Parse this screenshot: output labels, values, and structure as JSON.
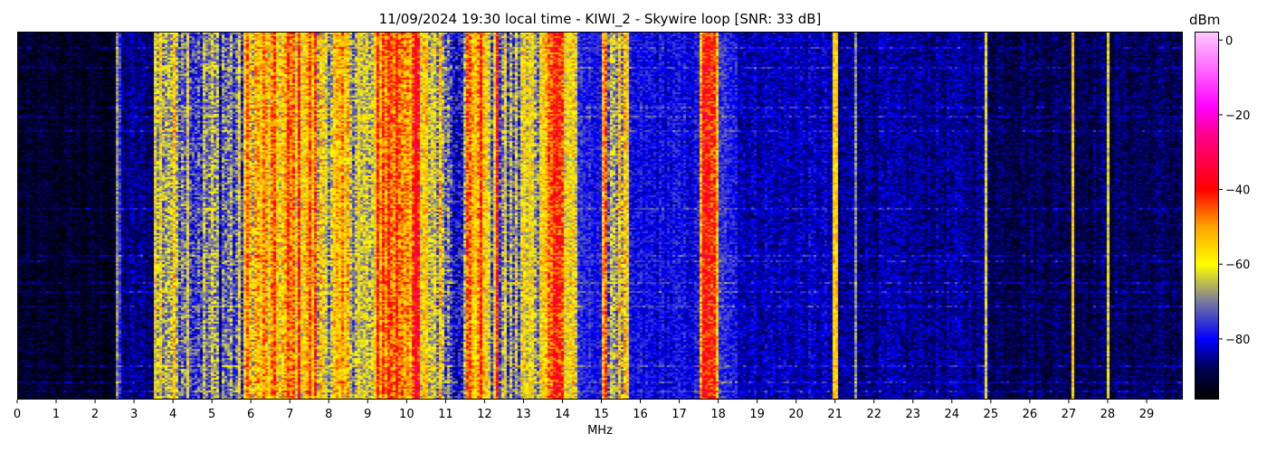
{
  "chart_data": {
    "type": "heatmap",
    "title": "11/09/2024 19:30 local time - KIWI_2 - Skywire loop [SNR: 33 dB]",
    "xlabel": "MHz",
    "ylabel": "",
    "xlim": [
      0,
      30
    ],
    "x_ticks": [
      "0",
      "1",
      "2",
      "3",
      "4",
      "5",
      "6",
      "7",
      "8",
      "9",
      "10",
      "11",
      "12",
      "13",
      "14",
      "15",
      "16",
      "17",
      "18",
      "19",
      "20",
      "21",
      "22",
      "23",
      "24",
      "25",
      "26",
      "27",
      "28",
      "29"
    ],
    "colorbar": {
      "label": "dBm",
      "range": [
        -96,
        2
      ],
      "ticks": [
        "0",
        "−20",
        "−40",
        "−60",
        "−80"
      ],
      "tick_values": [
        0,
        -20,
        -40,
        -60,
        -80
      ],
      "colormap_stops": [
        {
          "dBm": -96,
          "color": "#000000"
        },
        {
          "dBm": -88,
          "color": "#000050"
        },
        {
          "dBm": -80,
          "color": "#0000ff"
        },
        {
          "dBm": -70,
          "color": "#7878a0"
        },
        {
          "dBm": -60,
          "color": "#ffff00"
        },
        {
          "dBm": -50,
          "color": "#ffa500"
        },
        {
          "dBm": -40,
          "color": "#ff0000"
        },
        {
          "dBm": -25,
          "color": "#ff0090"
        },
        {
          "dBm": -18,
          "color": "#ff00ff"
        },
        {
          "dBm": 2,
          "color": "#ffc8ff"
        }
      ]
    },
    "grid": false,
    "frequency_profile_dBm": [
      {
        "from": 0,
        "to": 2.5,
        "dBm": -92
      },
      {
        "from": 2.5,
        "to": 2.65,
        "dBm": -76
      },
      {
        "from": 2.65,
        "to": 3.5,
        "dBm": -86
      },
      {
        "from": 3.5,
        "to": 4.5,
        "dBm": -64
      },
      {
        "from": 4.5,
        "to": 5.8,
        "dBm": -71
      },
      {
        "from": 5.8,
        "to": 6.9,
        "dBm": -55
      },
      {
        "from": 6.9,
        "to": 7.7,
        "dBm": -51
      },
      {
        "from": 7.7,
        "to": 8.8,
        "dBm": -60
      },
      {
        "from": 8.8,
        "to": 9.2,
        "dBm": -67
      },
      {
        "from": 9.2,
        "to": 10.3,
        "dBm": -45
      },
      {
        "from": 10.3,
        "to": 11.0,
        "dBm": -62
      },
      {
        "from": 11.0,
        "to": 11.5,
        "dBm": -72
      },
      {
        "from": 11.5,
        "to": 12.1,
        "dBm": -50
      },
      {
        "from": 12.1,
        "to": 12.9,
        "dBm": -70
      },
      {
        "from": 12.9,
        "to": 13.5,
        "dBm": -63
      },
      {
        "from": 13.5,
        "to": 14.0,
        "dBm": -46
      },
      {
        "from": 14.0,
        "to": 14.4,
        "dBm": -58
      },
      {
        "from": 14.4,
        "to": 15.0,
        "dBm": -78
      },
      {
        "from": 15.0,
        "to": 15.7,
        "dBm": -63
      },
      {
        "from": 15.7,
        "to": 17.5,
        "dBm": -80
      },
      {
        "from": 17.5,
        "to": 18.0,
        "dBm": -47
      },
      {
        "from": 18.0,
        "to": 18.5,
        "dBm": -77
      },
      {
        "from": 18.5,
        "to": 21.0,
        "dBm": -83
      },
      {
        "from": 21.0,
        "to": 25.0,
        "dBm": -85
      },
      {
        "from": 25.0,
        "to": 30.0,
        "dBm": -88
      }
    ],
    "carriers": [
      {
        "MHz": 2.57,
        "dBm": -68
      },
      {
        "MHz": 12.3,
        "dBm": -40
      },
      {
        "MHz": 13.75,
        "dBm": -40
      },
      {
        "MHz": 15.1,
        "dBm": -45
      },
      {
        "MHz": 15.6,
        "dBm": -55
      },
      {
        "MHz": 17.6,
        "dBm": -40
      },
      {
        "MHz": 21.0,
        "dBm": -55
      },
      {
        "MHz": 21.5,
        "dBm": -68
      },
      {
        "MHz": 24.85,
        "dBm": -62
      },
      {
        "MHz": 27.1,
        "dBm": -55
      },
      {
        "MHz": 28.0,
        "dBm": -62
      }
    ]
  }
}
